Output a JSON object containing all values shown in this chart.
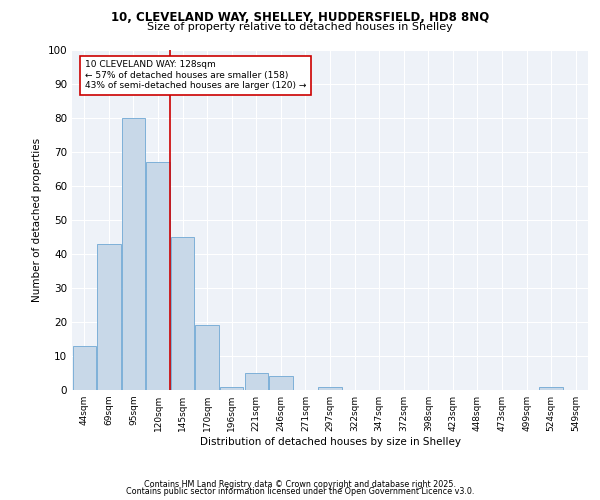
{
  "title1": "10, CLEVELAND WAY, SHELLEY, HUDDERSFIELD, HD8 8NQ",
  "title2": "Size of property relative to detached houses in Shelley",
  "xlabel": "Distribution of detached houses by size in Shelley",
  "ylabel": "Number of detached properties",
  "categories": [
    "44sqm",
    "69sqm",
    "95sqm",
    "120sqm",
    "145sqm",
    "170sqm",
    "196sqm",
    "221sqm",
    "246sqm",
    "271sqm",
    "297sqm",
    "322sqm",
    "347sqm",
    "372sqm",
    "398sqm",
    "423sqm",
    "448sqm",
    "473sqm",
    "499sqm",
    "524sqm",
    "549sqm"
  ],
  "values": [
    13,
    43,
    80,
    67,
    45,
    19,
    1,
    5,
    4,
    0,
    1,
    0,
    0,
    0,
    0,
    0,
    0,
    0,
    0,
    1,
    0
  ],
  "bar_color": "#c8d8e8",
  "bar_edge_color": "#6fa8d4",
  "vline_x": 3,
  "vline_color": "#cc0000",
  "annotation_text": "10 CLEVELAND WAY: 128sqm\n← 57% of detached houses are smaller (158)\n43% of semi-detached houses are larger (120) →",
  "annotation_box_color": "#ffffff",
  "annotation_box_edge": "#cc0000",
  "ylim": [
    0,
    100
  ],
  "yticks": [
    0,
    10,
    20,
    30,
    40,
    50,
    60,
    70,
    80,
    90,
    100
  ],
  "bg_color": "#eef2f8",
  "footer1": "Contains HM Land Registry data © Crown copyright and database right 2025.",
  "footer2": "Contains public sector information licensed under the Open Government Licence v3.0."
}
